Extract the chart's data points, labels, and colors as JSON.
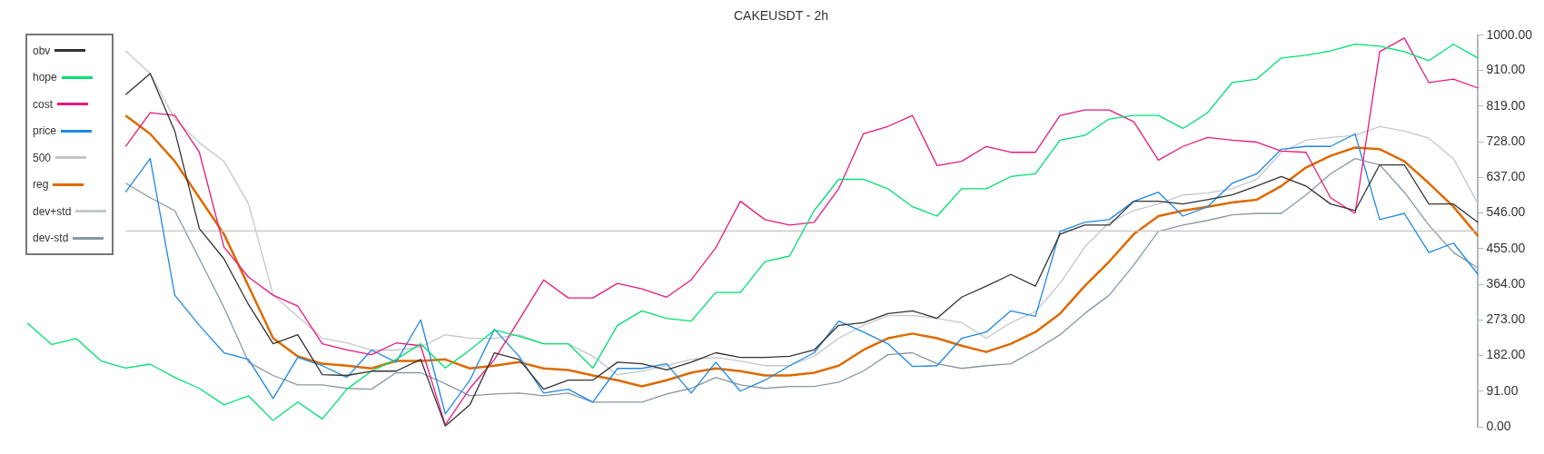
{
  "chart_data": {
    "type": "line",
    "title": "CAKEUSDT - 2h",
    "categories": [
      null,
      null,
      null,
      null,
      null,
      null,
      null,
      null,
      null,
      null,
      null,
      null,
      null,
      null,
      null,
      null,
      null,
      null,
      null,
      null,
      null,
      null,
      null,
      null,
      null,
      null,
      null,
      null,
      null,
      null,
      null,
      null,
      null,
      null,
      null,
      null,
      null,
      null,
      null,
      null,
      null,
      null,
      null,
      null,
      null,
      null,
      null,
      null,
      null,
      null,
      null,
      null,
      null,
      null,
      null,
      null,
      null,
      null,
      null,
      null
    ],
    "series": [
      {
        "name": "obv",
        "color": "#333333",
        "values": [
          null,
          null,
          null,
          null,
          848,
          902,
          755,
          506,
          429,
          312,
          212,
          235,
          133,
          131,
          142,
          142,
          172,
          2,
          56,
          189,
          172,
          96,
          119,
          119,
          165,
          161,
          145,
          165,
          189,
          177,
          177,
          180,
          196,
          259,
          266,
          289,
          296,
          277,
          331,
          359,
          389,
          359,
          492,
          515,
          515,
          576,
          576,
          569,
          580,
          592,
          615,
          639,
          615,
          569,
          552,
          669,
          669,
          569,
          569,
          522
        ]
      },
      {
        "name": "hope",
        "color": "#00e070",
        "values": [
          265,
          210,
          225,
          168,
          150,
          160,
          126,
          98,
          56,
          79,
          16,
          63,
          20,
          96,
          142,
          172,
          212,
          150,
          196,
          247,
          231,
          212,
          212,
          150,
          259,
          296,
          277,
          270,
          343,
          343,
          422,
          436,
          552,
          632,
          632,
          608,
          562,
          538,
          608,
          608,
          639,
          646,
          732,
          744,
          786,
          795,
          795,
          762,
          802,
          879,
          888,
          942,
          949,
          960,
          977,
          972,
          958,
          935,
          977,
          942
        ]
      },
      {
        "name": "cost",
        "color": "#e8197d",
        "values": [
          null,
          null,
          null,
          null,
          716,
          802,
          795,
          701,
          459,
          382,
          336,
          308,
          212,
          196,
          184,
          214,
          207,
          5,
          98,
          172,
          273,
          375,
          329,
          329,
          366,
          352,
          331,
          375,
          457,
          576,
          529,
          515,
          522,
          608,
          748,
          767,
          795,
          667,
          678,
          716,
          701,
          701,
          795,
          809,
          809,
          779,
          681,
          716,
          739,
          732,
          727,
          704,
          701,
          585,
          545,
          958,
          993,
          879,
          888,
          865
        ]
      },
      {
        "name": "price",
        "color": "#1e88e5",
        "values": [
          null,
          null,
          null,
          null,
          599,
          685,
          336,
          259,
          189,
          172,
          72,
          177,
          156,
          126,
          196,
          165,
          273,
          33,
          119,
          249,
          180,
          86,
          96,
          63,
          149,
          149,
          161,
          86,
          165,
          91,
          119,
          156,
          189,
          270,
          242,
          212,
          154,
          156,
          226,
          242,
          296,
          282,
          499,
          522,
          529,
          576,
          599,
          538,
          562,
          622,
          646,
          709,
          716,
          716,
          748,
          529,
          545,
          445,
          469,
          389
        ]
      },
      {
        "name": "500",
        "color": "#c4c4c4",
        "values": [
          null,
          null,
          null,
          null,
          500,
          500,
          500,
          500,
          500,
          500,
          500,
          500,
          500,
          500,
          500,
          500,
          500,
          500,
          500,
          500,
          500,
          500,
          500,
          500,
          500,
          500,
          500,
          500,
          500,
          500,
          500,
          500,
          500,
          500,
          500,
          500,
          500,
          500,
          500,
          500,
          500,
          500,
          500,
          500,
          500,
          500,
          500,
          500,
          500,
          500,
          500,
          500,
          500,
          500,
          500,
          500,
          500,
          500,
          500,
          500
        ]
      },
      {
        "name": "reg",
        "color": "#dd6a00",
        "values": [
          null,
          null,
          null,
          null,
          795,
          748,
          678,
          585,
          492,
          359,
          226,
          180,
          161,
          156,
          149,
          168,
          168,
          172,
          149,
          156,
          165,
          149,
          145,
          131,
          119,
          103,
          119,
          138,
          149,
          142,
          131,
          131,
          138,
          156,
          196,
          226,
          238,
          226,
          207,
          191,
          212,
          242,
          289,
          359,
          422,
          492,
          538,
          552,
          562,
          573,
          580,
          615,
          662,
          692,
          713,
          709,
          678,
          622,
          562,
          487
        ]
      },
      {
        "name": "dev+std",
        "color": "#c3c8cc",
        "values": [
          null,
          null,
          null,
          null,
          960,
          902,
          786,
          725,
          678,
          569,
          336,
          282,
          226,
          214,
          196,
          196,
          203,
          235,
          226,
          226,
          235,
          212,
          212,
          180,
          133,
          142,
          156,
          172,
          177,
          168,
          156,
          156,
          180,
          226,
          259,
          284,
          284,
          277,
          266,
          226,
          266,
          294,
          366,
          459,
          522,
          552,
          569,
          592,
          597,
          608,
          632,
          701,
          732,
          739,
          744,
          767,
          755,
          737,
          685,
          569
        ]
      },
      {
        "name": "dev-std",
        "color": "#8a98a3",
        "values": [
          null,
          null,
          null,
          null,
          622,
          585,
          552,
          429,
          305,
          165,
          131,
          107,
          107,
          98,
          96,
          138,
          138,
          110,
          79,
          84,
          86,
          79,
          86,
          63,
          63,
          63,
          84,
          98,
          126,
          107,
          98,
          103,
          103,
          114,
          142,
          184,
          189,
          161,
          149,
          156,
          161,
          196,
          235,
          289,
          336,
          413,
          499,
          515,
          527,
          541,
          545,
          545,
          592,
          646,
          685,
          669,
          599,
          515,
          445,
          406
        ]
      }
    ],
    "ylim": [
      0,
      1000
    ],
    "yticks": [
      {
        "value": 0,
        "label": "0.00"
      },
      {
        "value": 91,
        "label": "91.00"
      },
      {
        "value": 182,
        "label": "182.00"
      },
      {
        "value": 273,
        "label": "273.00"
      },
      {
        "value": 364,
        "label": "364.00"
      },
      {
        "value": 455,
        "label": "455.00"
      },
      {
        "value": 546,
        "label": "546.00"
      },
      {
        "value": 637,
        "label": "637.00"
      },
      {
        "value": 728,
        "label": "728.00"
      },
      {
        "value": 819,
        "label": "819.00"
      },
      {
        "value": 910,
        "label": "910.00"
      },
      {
        "value": 1000,
        "label": "1000.00"
      }
    ],
    "grid": false,
    "legend": "top left",
    "tick_labels": "y",
    "marker": "none",
    "line_style": "solid"
  }
}
